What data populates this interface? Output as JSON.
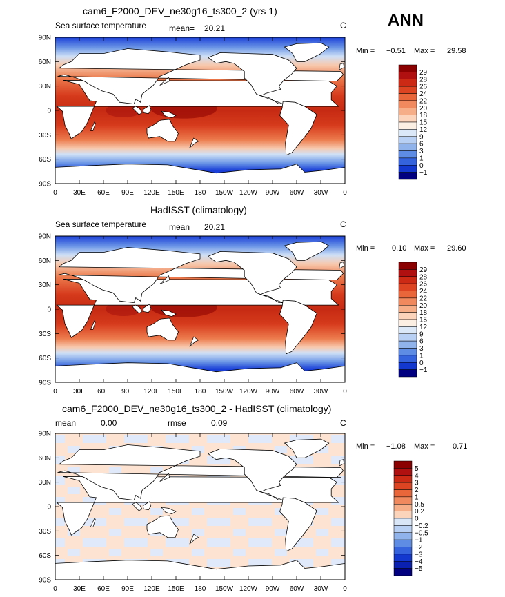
{
  "season": "ANN",
  "panels": [
    {
      "title": "cam6_F2000_DEV_ne30g16_ts300_2 (yrs 1)",
      "left_label": "Sea surface temperature",
      "mean_label": "mean=",
      "mean_value": "20.21",
      "units": "C",
      "min_label": "Min =",
      "min_value": "−0.51",
      "max_label": "Max =",
      "max_value": "29.58"
    },
    {
      "title": "HadISST (climatology)",
      "left_label": "Sea surface temperature",
      "mean_label": "mean=",
      "mean_value": "20.21",
      "units": "C",
      "min_label": "Min =",
      "min_value": "0.10",
      "max_label": "Max =",
      "max_value": "29.60"
    },
    {
      "title": "cam6_F2000_DEV_ne30g16_ts300_2 - HadISST (climatology)",
      "mean_label": "mean =",
      "mean_value": "0.00",
      "rmse_label": "rmse =",
      "rmse_value": "0.09",
      "units": "C",
      "min_label": "Min =",
      "min_value": "−1.08",
      "max_label": "Max =",
      "max_value": "0.71"
    }
  ],
  "lat_ticks": [
    "90N",
    "60N",
    "30N",
    "0",
    "30S",
    "60S",
    "90S"
  ],
  "lon_ticks": [
    "0",
    "30E",
    "60E",
    "90E",
    "120E",
    "150E",
    "180",
    "150W",
    "120W",
    "90W",
    "60W",
    "30W",
    "0"
  ],
  "sst_colorbar": {
    "labels": [
      "29",
      "28",
      "26",
      "24",
      "22",
      "20",
      "18",
      "15",
      "12",
      "9",
      "6",
      "3",
      "1",
      "0",
      "−1"
    ],
    "colors": [
      "#8b0000",
      "#b01010",
      "#cc2a14",
      "#dd4422",
      "#e9653a",
      "#f08a5e",
      "#f6ae88",
      "#fbd4bb",
      "#fbeee2",
      "#dbe8f8",
      "#b8d0f3",
      "#90b3ec",
      "#5e8ce4",
      "#3563de",
      "#1238d0",
      "#000080"
    ]
  },
  "diff_colorbar": {
    "labels": [
      "5",
      "4",
      "3",
      "2",
      "1",
      "0.5",
      "0.2",
      "0",
      "−0.2",
      "−0.5",
      "−1",
      "−2",
      "−3",
      "−4",
      "−5"
    ],
    "colors": [
      "#8b0000",
      "#b01010",
      "#cc2a14",
      "#dd4422",
      "#e9653a",
      "#f08a5e",
      "#f6ae88",
      "#fbd4bb",
      "#d8e6f8",
      "#b8d0f3",
      "#90b3ec",
      "#5e8ce4",
      "#3563de",
      "#1238d0",
      "#0a20b0",
      "#000080"
    ]
  },
  "chart_data": [
    {
      "type": "heatmap",
      "title": "cam6_F2000_DEV_ne30g16_ts300_2 (yrs 1)",
      "variable": "Sea surface temperature",
      "units": "C",
      "mean": 20.21,
      "min": -0.51,
      "max": 29.58,
      "xlim": [
        "0",
        "0"
      ],
      "ylim": [
        "90S",
        "90N"
      ],
      "levels": [
        -1,
        0,
        1,
        3,
        6,
        9,
        12,
        15,
        18,
        20,
        22,
        24,
        26,
        28,
        29
      ]
    },
    {
      "type": "heatmap",
      "title": "HadISST (climatology)",
      "variable": "Sea surface temperature",
      "units": "C",
      "mean": 20.21,
      "min": 0.1,
      "max": 29.6,
      "xlim": [
        "0",
        "0"
      ],
      "ylim": [
        "90S",
        "90N"
      ],
      "levels": [
        -1,
        0,
        1,
        3,
        6,
        9,
        12,
        15,
        18,
        20,
        22,
        24,
        26,
        28,
        29
      ]
    },
    {
      "type": "heatmap",
      "title": "cam6_F2000_DEV_ne30g16_ts300_2 - HadISST (climatology)",
      "units": "C",
      "mean": 0.0,
      "rmse": 0.09,
      "min": -1.08,
      "max": 0.71,
      "xlim": [
        "0",
        "0"
      ],
      "ylim": [
        "90S",
        "90N"
      ],
      "levels": [
        -5,
        -4,
        -3,
        -2,
        -1,
        -0.5,
        -0.2,
        0,
        0.2,
        0.5,
        1,
        2,
        3,
        4,
        5
      ]
    }
  ]
}
